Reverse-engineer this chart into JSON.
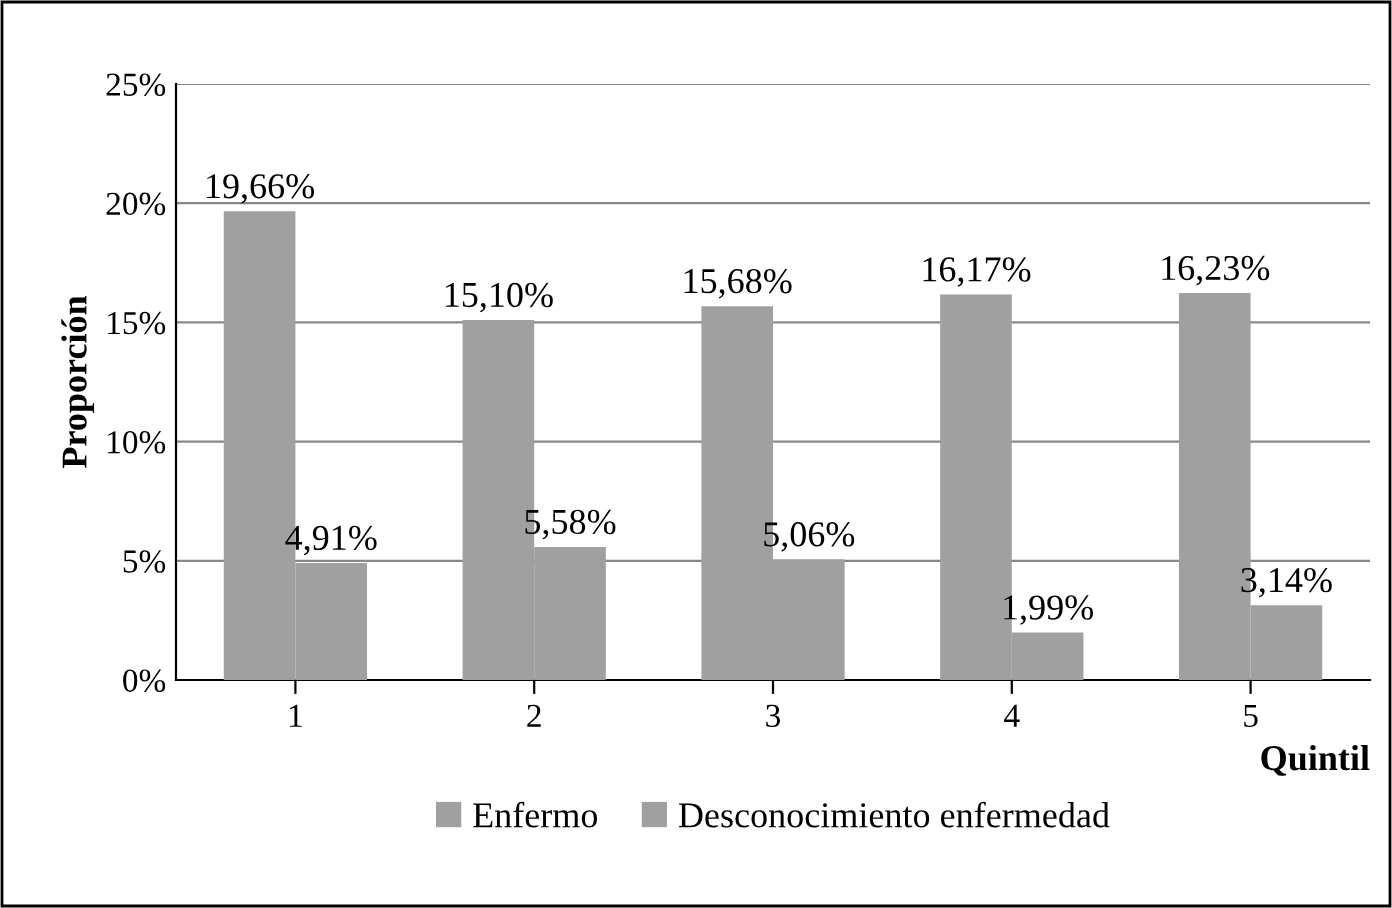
{
  "chart_data": {
    "type": "bar",
    "xlabel": "Quintil",
    "ylabel": "Proporción",
    "categories": [
      "1",
      "2",
      "3",
      "4",
      "5"
    ],
    "series": [
      {
        "name": "Enfermo",
        "color": "#a0a0a0",
        "values": [
          19.66,
          15.1,
          15.68,
          16.17,
          16.23
        ],
        "value_labels": [
          "19,66%",
          "15,10%",
          "15,68%",
          "16,17%",
          "16,23%"
        ]
      },
      {
        "name": "Desconocimiento enfermedad",
        "color": "#a0a0a0",
        "values": [
          4.91,
          5.58,
          5.06,
          1.99,
          3.14
        ],
        "value_labels": [
          "4,91%",
          "5,58%",
          "5,06%",
          "1,99%",
          "3,14%"
        ]
      }
    ],
    "ylim": [
      0,
      25
    ],
    "yticks": [
      {
        "value": 0,
        "label": "0%"
      },
      {
        "value": 5,
        "label": "5%"
      },
      {
        "value": 10,
        "label": "10%"
      },
      {
        "value": 15,
        "label": "15%"
      },
      {
        "value": 20,
        "label": "20%"
      },
      {
        "value": 25,
        "label": "25%"
      }
    ],
    "grid": "y",
    "legend": "bottom"
  }
}
